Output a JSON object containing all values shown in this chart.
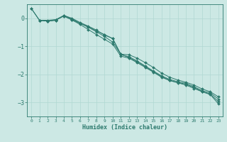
{
  "xlabel": "Humidex (Indice chaleur)",
  "ylabel": "",
  "background_color": "#cce8e4",
  "grid_color": "#b0d8d2",
  "line_color": "#2d7a6e",
  "xlim": [
    -0.5,
    23.5
  ],
  "ylim": [
    -3.5,
    0.5
  ],
  "yticks": [
    0,
    -1,
    -2,
    -3
  ],
  "xticks": [
    0,
    1,
    2,
    3,
    4,
    5,
    6,
    7,
    8,
    9,
    10,
    11,
    12,
    13,
    14,
    15,
    16,
    17,
    18,
    19,
    20,
    21,
    22,
    23
  ],
  "series": [
    {
      "x": [
        0,
        1,
        2,
        3,
        4,
        5,
        6,
        7,
        8,
        9,
        10,
        11,
        12,
        13,
        14,
        15,
        16,
        17,
        18,
        19,
        20,
        21,
        22,
        23
      ],
      "y": [
        0.35,
        -0.07,
        -0.07,
        -0.05,
        0.1,
        -0.02,
        -0.18,
        -0.3,
        -0.45,
        -0.58,
        -0.72,
        -1.28,
        -1.3,
        -1.42,
        -1.58,
        -1.75,
        -1.95,
        -2.1,
        -2.2,
        -2.28,
        -2.38,
        -2.52,
        -2.62,
        -2.8
      ]
    },
    {
      "x": [
        1,
        2,
        3,
        4,
        5,
        6,
        7,
        8,
        9,
        10,
        11,
        12,
        13,
        14,
        15,
        16,
        17,
        18,
        19,
        20,
        21,
        22,
        23
      ],
      "y": [
        -0.07,
        -0.1,
        -0.07,
        0.1,
        -0.0,
        -0.15,
        -0.28,
        -0.42,
        -0.6,
        -0.72,
        -1.3,
        -1.37,
        -1.52,
        -1.7,
        -1.88,
        -2.05,
        -2.18,
        -2.26,
        -2.32,
        -2.44,
        -2.58,
        -2.66,
        -2.88
      ]
    },
    {
      "x": [
        0,
        1,
        2,
        3,
        4,
        5,
        6,
        7,
        8,
        9,
        10,
        11,
        12,
        13,
        14,
        15,
        16,
        17,
        18,
        19,
        20,
        21,
        22,
        23
      ],
      "y": [
        0.35,
        -0.07,
        -0.1,
        -0.07,
        0.08,
        -0.06,
        -0.22,
        -0.4,
        -0.58,
        -0.75,
        -0.92,
        -1.35,
        -1.42,
        -1.58,
        -1.75,
        -1.92,
        -2.1,
        -2.22,
        -2.3,
        -2.38,
        -2.5,
        -2.62,
        -2.72,
        -3.05
      ]
    },
    {
      "x": [
        1,
        2,
        3,
        4,
        5,
        6,
        7,
        8,
        9,
        10,
        11,
        12,
        13,
        14,
        15,
        16,
        17,
        18,
        19,
        20,
        21,
        22,
        23
      ],
      "y": [
        -0.07,
        -0.1,
        -0.05,
        0.08,
        -0.05,
        -0.18,
        -0.32,
        -0.48,
        -0.65,
        -0.85,
        -1.28,
        -1.4,
        -1.55,
        -1.72,
        -1.9,
        -2.07,
        -2.21,
        -2.29,
        -2.35,
        -2.47,
        -2.61,
        -2.7,
        -2.97
      ]
    }
  ]
}
